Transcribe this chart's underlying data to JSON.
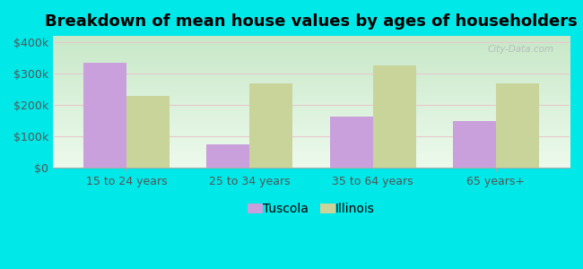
{
  "title": "Breakdown of mean house values by ages of householders",
  "categories": [
    "15 to 24 years",
    "25 to 34 years",
    "35 to 64 years",
    "65 years+"
  ],
  "tuscola_values": [
    335000,
    75000,
    165000,
    150000
  ],
  "illinois_values": [
    230000,
    270000,
    325000,
    270000
  ],
  "tuscola_color": "#c9a0dc",
  "illinois_color": "#c8d49a",
  "background_color": "#00e8e8",
  "bar_width": 0.35,
  "ylim": [
    0,
    420000
  ],
  "yticks": [
    0,
    100000,
    200000,
    300000,
    400000
  ],
  "ytick_labels": [
    "$0",
    "$100k",
    "$200k",
    "$300k",
    "$400k"
  ],
  "legend_labels": [
    "Tuscola",
    "Illinois"
  ],
  "watermark": "City-Data.com",
  "title_fontsize": 13,
  "tick_fontsize": 9,
  "legend_fontsize": 10,
  "grid_color": "#ddeecc",
  "plot_bg_top": "#c8e8c8",
  "plot_bg_bottom": "#edfaed"
}
